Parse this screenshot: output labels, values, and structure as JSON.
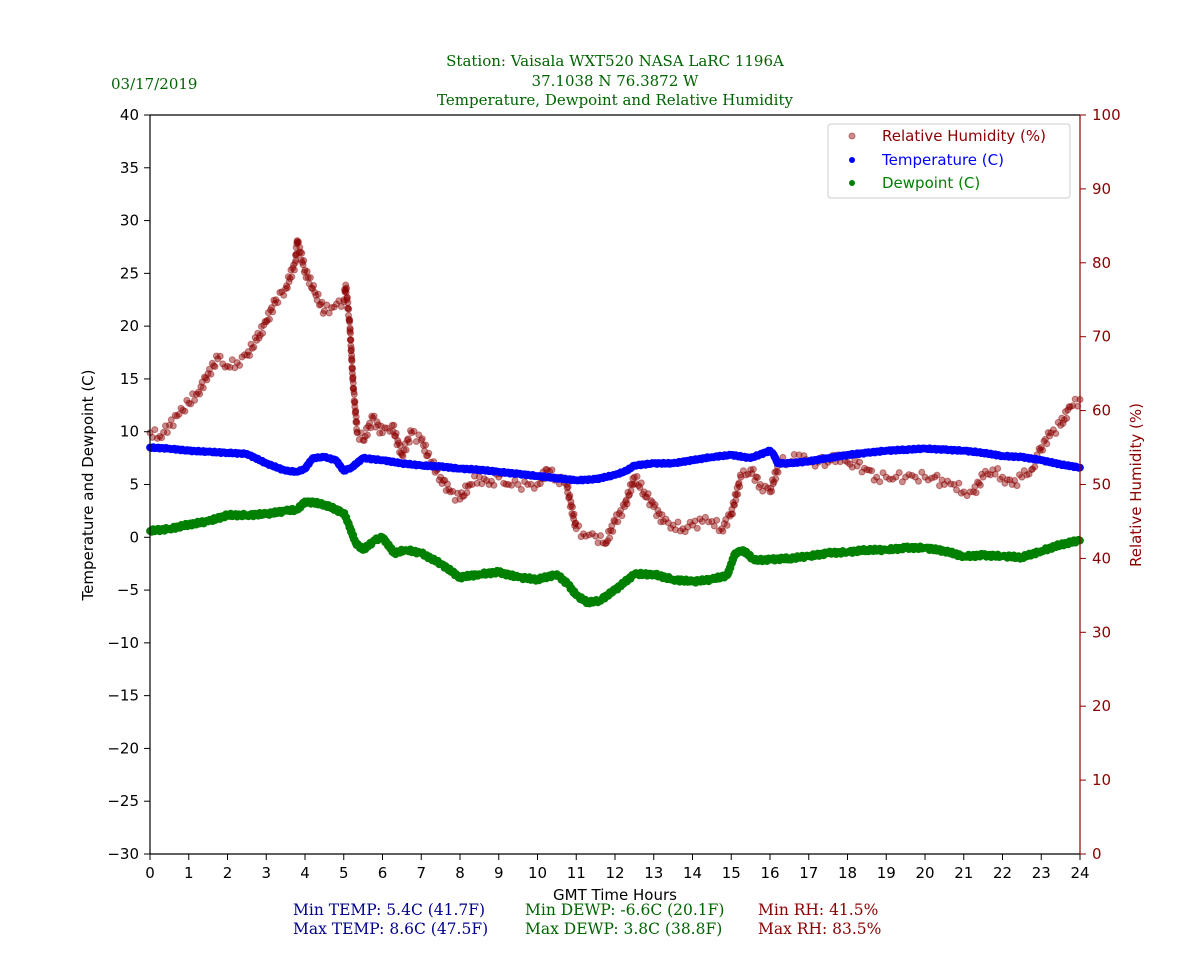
{
  "header": {
    "date": "03/17/2019",
    "title_line1": "Station:  Vaisala WXT520  NASA LaRC 1196A",
    "title_line2": "37.1038 N 76.3872 W",
    "title_line3": "Temperature, Dewpoint and Relative Humidity"
  },
  "colors": {
    "temperature": "#0000ff",
    "dewpoint": "#008000",
    "rh": "#8b0000",
    "title": "#006400",
    "min_temp_text": "#00008b"
  },
  "stats": {
    "min_temp": "Min TEMP: 5.4C (41.7F)",
    "max_temp": "Max TEMP: 8.6C (47.5F)",
    "min_dewp": "Min DEWP: -6.6C (20.1F)",
    "max_dewp": "Max DEWP: 3.8C (38.8F)",
    "min_rh": "Min RH: 41.5%",
    "max_rh": "Max RH: 83.5%"
  },
  "chart_data": {
    "type": "scatter",
    "title": "Temperature, Dewpoint and Relative Humidity",
    "xlabel": "GMT Time Hours",
    "ylabel": "Temperature and Dewpoint (C)",
    "ylabel_right": "Relative Humidity (%)",
    "xlim": [
      0,
      24
    ],
    "ylim": [
      -30,
      40
    ],
    "ylim_right": [
      0,
      100
    ],
    "x_ticks": [
      "0",
      "1",
      "2",
      "3",
      "4",
      "5",
      "6",
      "7",
      "8",
      "9",
      "10",
      "11",
      "12",
      "13",
      "14",
      "15",
      "16",
      "17",
      "18",
      "19",
      "20",
      "21",
      "22",
      "23",
      "24"
    ],
    "y_ticks": [
      "40",
      "35",
      "30",
      "25",
      "20",
      "15",
      "10",
      "5",
      "0",
      "−10",
      "−15",
      "−20",
      "−25",
      "−30"
    ],
    "y_ticks_all": [
      "40",
      "35",
      "30",
      "25",
      "20",
      "15",
      "10",
      "5",
      "0",
      "−5",
      "−10",
      "−15",
      "−20",
      "−25",
      "−30"
    ],
    "y_right_ticks": [
      "100",
      "90",
      "80",
      "70",
      "60",
      "50",
      "40",
      "30",
      "20",
      "10",
      "0"
    ],
    "legend_position": "top-right",
    "legend": [
      "Relative Humidity (%)",
      "Temperature (C)",
      "Dewpoint (C)"
    ],
    "grid": false,
    "series": [
      {
        "name": "Temperature (C)",
        "axis": "left",
        "x": [
          0,
          0.5,
          1,
          1.5,
          2,
          2.5,
          3,
          3.5,
          3.8,
          4,
          4.2,
          4.5,
          4.8,
          5,
          5.2,
          5.5,
          6,
          6.5,
          7,
          7.5,
          8,
          8.5,
          9,
          9.5,
          10,
          10.5,
          11,
          11.5,
          12,
          12.3,
          12.5,
          13,
          13.5,
          14,
          14.5,
          15,
          15.5,
          16,
          16.1,
          16.2,
          16.5,
          17,
          17.5,
          18,
          18.5,
          19,
          19.5,
          20,
          20.5,
          21,
          21.5,
          22,
          22.5,
          23,
          23.5,
          24
        ],
        "y": [
          8.5,
          8.4,
          8.2,
          8.1,
          8.0,
          7.9,
          7.0,
          6.3,
          6.2,
          6.5,
          7.5,
          7.6,
          7.3,
          6.3,
          6.6,
          7.5,
          7.3,
          7.0,
          6.8,
          6.7,
          6.5,
          6.4,
          6.2,
          6.0,
          5.8,
          5.6,
          5.4,
          5.5,
          5.9,
          6.3,
          6.8,
          7.0,
          7.0,
          7.3,
          7.6,
          7.8,
          7.5,
          8.2,
          7.8,
          7.0,
          7.0,
          7.2,
          7.5,
          7.8,
          8.0,
          8.2,
          8.3,
          8.4,
          8.3,
          8.2,
          8.0,
          7.7,
          7.6,
          7.3,
          6.9,
          6.6
        ]
      },
      {
        "name": "Dewpoint (C)",
        "axis": "left",
        "x": [
          0,
          0.5,
          1,
          1.5,
          2,
          2.5,
          3,
          3.5,
          3.8,
          4,
          4.5,
          5,
          5.1,
          5.3,
          5.5,
          5.8,
          6,
          6.3,
          6.6,
          7,
          7.5,
          8,
          8.5,
          9,
          9.5,
          10,
          10.5,
          10.8,
          11,
          11.3,
          11.6,
          12,
          12.5,
          13,
          13.5,
          14,
          14.5,
          14.9,
          15.1,
          15.3,
          15.6,
          16,
          16.5,
          17,
          17.5,
          18,
          18.5,
          19,
          19.5,
          20,
          20.5,
          21,
          21.5,
          22,
          22.5,
          23,
          23.5,
          24
        ],
        "y": [
          0.6,
          0.8,
          1.2,
          1.5,
          2.1,
          2.1,
          2.2,
          2.5,
          2.6,
          3.4,
          3.1,
          2.3,
          1.5,
          -0.5,
          -1.2,
          -0.3,
          0.0,
          -1.5,
          -1.2,
          -1.5,
          -2.5,
          -3.8,
          -3.5,
          -3.3,
          -3.8,
          -4.0,
          -3.5,
          -4.5,
          -5.5,
          -6.2,
          -6.0,
          -5.0,
          -3.5,
          -3.5,
          -4.0,
          -4.2,
          -4.0,
          -3.6,
          -1.5,
          -1.2,
          -2.2,
          -2.1,
          -2.0,
          -1.8,
          -1.5,
          -1.4,
          -1.2,
          -1.2,
          -1.0,
          -1.0,
          -1.3,
          -1.8,
          -1.7,
          -1.8,
          -1.9,
          -1.3,
          -0.7,
          -0.3
        ]
      },
      {
        "name": "Relative Humidity (%)",
        "axis": "right",
        "x": [
          0,
          0.25,
          0.5,
          0.75,
          1,
          1.25,
          1.5,
          1.75,
          2,
          2.25,
          2.5,
          2.75,
          3,
          3.25,
          3.5,
          3.75,
          3.8,
          4,
          4.25,
          4.5,
          4.75,
          5,
          5.05,
          5.15,
          5.25,
          5.35,
          5.5,
          5.75,
          6,
          6.25,
          6.5,
          6.75,
          7,
          7.25,
          7.5,
          7.75,
          8,
          8.25,
          8.5,
          8.75,
          9,
          9.25,
          9.5,
          9.75,
          10,
          10.25,
          10.5,
          10.75,
          11,
          11.25,
          11.5,
          11.75,
          12,
          12.25,
          12.5,
          12.75,
          13,
          13.25,
          13.5,
          13.75,
          14,
          14.25,
          14.5,
          14.75,
          15,
          15.25,
          15.5,
          15.75,
          16,
          16.25,
          16.5,
          16.75,
          17,
          17.25,
          17.5,
          17.75,
          18,
          18.25,
          18.5,
          18.75,
          19,
          19.25,
          19.5,
          19.75,
          20,
          20.25,
          20.5,
          20.75,
          21,
          21.25,
          21.5,
          21.75,
          22,
          22.25,
          22.5,
          22.75,
          23,
          23.25,
          23.5,
          23.75,
          24
        ],
        "y": [
          57,
          56.5,
          58,
          59.5,
          61,
          62.5,
          65,
          67,
          66,
          66.5,
          67.5,
          69.5,
          72,
          75,
          76.5,
          80,
          83,
          79,
          76,
          73.5,
          74,
          75,
          77,
          72,
          63,
          57,
          56,
          59,
          57,
          58,
          54,
          57,
          56,
          53,
          51,
          49,
          48,
          50,
          51,
          50,
          51,
          50,
          50,
          50,
          50,
          52,
          51,
          50,
          44,
          43,
          43,
          42,
          45,
          47,
          51,
          49,
          47,
          45,
          44.5,
          44,
          44.5,
          45,
          45,
          44,
          46,
          51,
          52,
          50,
          49,
          53,
          53,
          54,
          53,
          53,
          53,
          54,
          53,
          52.5,
          52,
          51,
          51,
          51,
          51,
          51,
          51,
          51,
          50,
          50,
          49,
          49,
          51,
          52,
          51,
          50,
          51,
          52,
          55,
          57,
          58,
          60.5,
          61.5
        ]
      }
    ]
  }
}
